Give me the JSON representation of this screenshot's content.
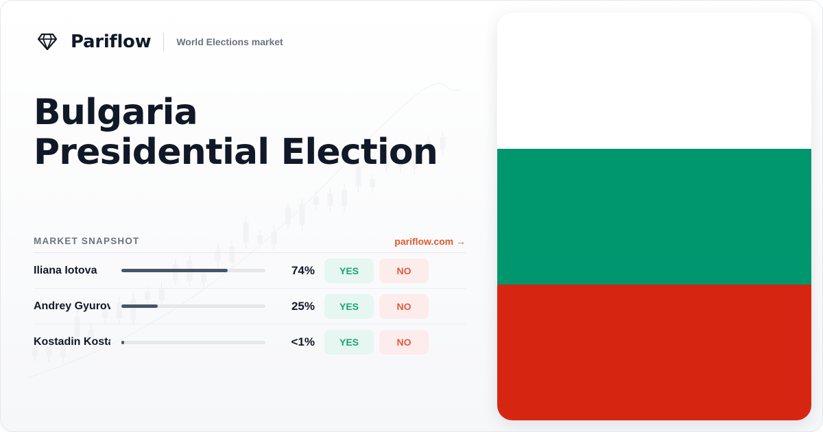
{
  "brand": {
    "name": "Pariflow",
    "market_label": "World Elections market",
    "logo_icon": "diamond-icon"
  },
  "title": {
    "line1": "Bulgaria",
    "line2": "Presidential Election"
  },
  "snapshot": {
    "heading": "MARKET SNAPSHOT",
    "link_label": "pariflow.com →",
    "rows": [
      {
        "name": "Iliana Iotova",
        "percent_label": "74%",
        "probability": 0.74,
        "yes_label": "YES",
        "no_label": "NO"
      },
      {
        "name": "Andrey Gyurov",
        "percent_label": "25%",
        "probability": 0.25,
        "yes_label": "YES",
        "no_label": "NO"
      },
      {
        "name": "Kostadin Kostadinov",
        "percent_label": "<1%",
        "probability": 0.005,
        "yes_label": "YES",
        "no_label": "NO"
      }
    ]
  },
  "flag": {
    "country": "Bulgaria",
    "colors": [
      "#ffffff",
      "#00966e",
      "#d62612"
    ]
  },
  "colors": {
    "accent": "#e0592b",
    "yes": "#17a378",
    "no": "#e25a3c",
    "bar": "#475569"
  }
}
